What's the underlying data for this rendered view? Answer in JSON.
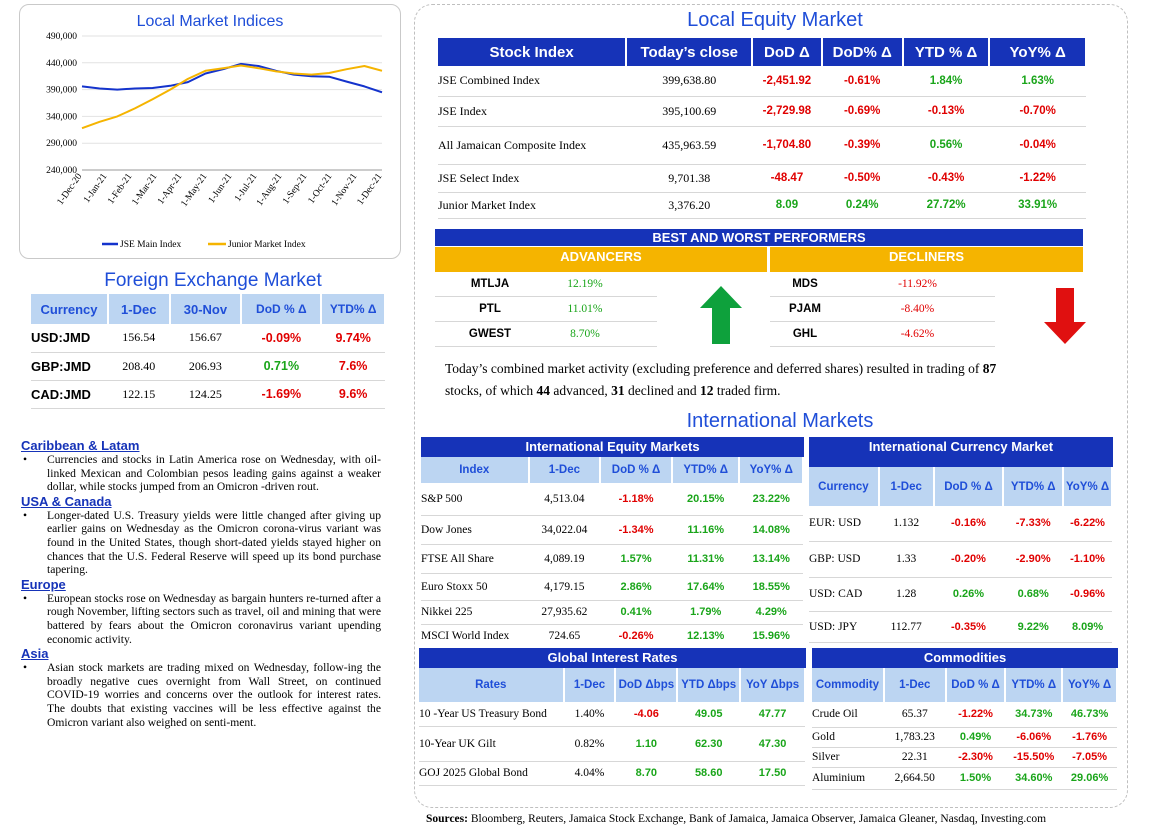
{
  "lmi": {
    "title": "Local Market Indices",
    "chart_data": {
      "type": "line",
      "title": "Local Market Indices",
      "yticks": [
        "490,000",
        "440,000",
        "390,000",
        "340,000",
        "290,000",
        "240,000"
      ],
      "ylim": [
        240000,
        490000
      ],
      "xticks": [
        "1-Dec-20",
        "1-Jan-21",
        "1-Feb-21",
        "1-Mar-21",
        "1-Apr-21",
        "1-May-21",
        "1-Jun-21",
        "1-Jul-21",
        "1-Aug-21",
        "1-Sep-21",
        "1-Oct-21",
        "1-Nov-21",
        "1-Dec-21"
      ],
      "legend_position": "bottom",
      "series": [
        {
          "name": "JSE Main Index",
          "color": "#1433cc",
          "values": [
            396000,
            392000,
            390000,
            392000,
            393000,
            397000,
            404000,
            420000,
            428000,
            438000,
            434000,
            425000,
            418000,
            415000,
            414000,
            405000,
            396000,
            385000
          ]
        },
        {
          "name": "Junior Market Index",
          "color": "#f5b400",
          "values": [
            318000,
            330000,
            340000,
            355000,
            372000,
            390000,
            410000,
            425000,
            430000,
            435000,
            430000,
            424000,
            420000,
            418000,
            421000,
            428000,
            434000,
            425000
          ]
        }
      ]
    }
  },
  "fx": {
    "title": "Foreign Exchange Market",
    "headers": [
      "Currency",
      "1-Dec",
      "30-Nov",
      "DoD % Δ",
      "YTD% Δ"
    ],
    "rows": [
      [
        "USD:JMD",
        "156.54",
        "156.67",
        "-0.09%",
        "9.74%"
      ],
      [
        "GBP:JMD",
        "208.40",
        "206.93",
        "0.71%",
        "7.6%"
      ],
      [
        "CAD:JMD",
        "122.15",
        "124.25",
        "-1.69%",
        "9.6%"
      ]
    ]
  },
  "news": [
    {
      "heading": "Caribbean & Latam",
      "text": "Currencies and stocks in Latin America rose on Wednesday, with oil-linked Mexican and Colombian pesos leading gains against a weaker dollar, while stocks jumped from an Omicron -driven rout."
    },
    {
      "heading": "USA & Canada",
      "text": "Longer-dated U.S. Treasury yields were little changed after giving up earlier gains on Wednesday as the Omicron corona-virus variant was found in the United States, though short-dated yields stayed higher on chances that the U.S. Federal Reserve will speed up its bond purchase tapering."
    },
    {
      "heading": "Europe",
      "text": "European stocks rose on Wednesday as bargain hunters re-turned after a rough November, lifting sectors such as travel, oil and mining that were battered by fears about the Omicron coronavirus variant upending economic activity."
    },
    {
      "heading": "Asia",
      "text": "Asian stock markets are trading mixed on Wednesday, follow-ing the broadly negative cues overnight from Wall Street, on continued COVID-19 worries and concerns over the outlook for interest rates. The doubts that existing vaccines will be less effective against the Omicron variant also weighed on senti-ment."
    }
  ],
  "lem": {
    "title": "Local Equity Market",
    "headers": [
      "Stock Index",
      "Today’s close",
      "DoD  Δ",
      "DoD% Δ",
      "YTD % Δ",
      "YoY% Δ"
    ],
    "rows": [
      [
        "JSE Combined Index",
        "399,638.80",
        "-2,451.92",
        "-0.61%",
        "1.84%",
        "1.63%"
      ],
      [
        "JSE Index",
        "395,100.69",
        "-2,729.98",
        "-0.69%",
        "-0.13%",
        "-0.70%"
      ],
      [
        "All Jamaican Composite Index",
        "435,963.59",
        "-1,704.80",
        "-0.39%",
        "0.56%",
        "-0.04%"
      ],
      [
        "JSE Select Index",
        "9,701.38",
        "-48.47",
        "-0.50%",
        "-0.43%",
        "-1.22%"
      ],
      [
        "Junior Market Index",
        "3,376.20",
        "8.09",
        "0.24%",
        "27.72%",
        "33.91%"
      ]
    ]
  },
  "bw": {
    "title": "BEST AND WORST PERFORMERS",
    "adv_label": "ADVANCERS",
    "dec_label": "DECLINERS",
    "advancers": [
      [
        "MTLJA",
        "12.19%"
      ],
      [
        "PTL",
        "11.01%"
      ],
      [
        "GWEST",
        "8.70%"
      ]
    ],
    "decliners": [
      [
        "MDS",
        "-11.92%"
      ],
      [
        "PJAM",
        "-8.40%"
      ],
      [
        "GHL",
        "-4.62%"
      ]
    ],
    "summary_a": "Today’s combined market activity (excluding preference and deferred shares) resulted in trading of ",
    "summary_n1": "87",
    "summary_b": "stocks, of which ",
    "summary_n2": "44",
    "summary_c": " advanced, ",
    "summary_n3": "31",
    "summary_d": " declined and ",
    "summary_n4": "12",
    "summary_e": " traded firm."
  },
  "intl": {
    "title": "International Markets",
    "equity": {
      "title": "International Equity Markets",
      "headers": [
        "Index",
        "1-Dec",
        "DoD % Δ",
        "YTD% Δ",
        "YoY% Δ"
      ],
      "rows": [
        [
          "S&P 500",
          "4,513.04",
          "-1.18%",
          "20.15%",
          "23.22%"
        ],
        [
          "Dow Jones",
          "34,022.04",
          "-1.34%",
          "11.16%",
          "14.08%"
        ],
        [
          "FTSE All Share",
          "4,089.19",
          "1.57%",
          "11.31%",
          "13.14%"
        ],
        [
          "Euro Stoxx 50",
          "4,179.15",
          "2.86%",
          "17.64%",
          "18.55%"
        ],
        [
          "Nikkei 225",
          "27,935.62",
          "0.41%",
          "1.79%",
          "4.29%"
        ],
        [
          "MSCI World Index",
          "724.65",
          "-0.26%",
          "12.13%",
          "15.96%"
        ]
      ]
    },
    "currency": {
      "title": "International Currency Market",
      "headers": [
        "Currency",
        "1-Dec",
        "DoD % Δ",
        "YTD% Δ",
        "YoY% Δ"
      ],
      "rows": [
        [
          "EUR: USD",
          "1.132",
          "-0.16%",
          "-7.33%",
          "-6.22%"
        ],
        [
          "GBP: USD",
          "1.33",
          "-0.20%",
          "-2.90%",
          "-1.10%"
        ],
        [
          "USD: CAD",
          "1.28",
          "0.26%",
          "0.68%",
          "-0.96%"
        ],
        [
          "USD: JPY",
          "112.77",
          "-0.35%",
          "9.22%",
          "8.09%"
        ]
      ]
    },
    "rates": {
      "title": "Global Interest Rates",
      "headers": [
        "Rates",
        "1-Dec",
        "DoD Δbps",
        "YTD Δbps",
        "YoY Δbps"
      ],
      "rows": [
        [
          "10 -Year US Treasury Bond",
          "1.40%",
          "-4.06",
          "49.05",
          "47.77"
        ],
        [
          "10-Year UK Gilt",
          "0.82%",
          "1.10",
          "62.30",
          "47.30"
        ],
        [
          "GOJ 2025 Global Bond",
          "4.04%",
          "8.70",
          "58.60",
          "17.50"
        ]
      ]
    },
    "commodities": {
      "title": "Commodities",
      "headers": [
        "Commodity",
        "1-Dec",
        "DoD % Δ",
        "YTD% Δ",
        "YoY% Δ"
      ],
      "rows": [
        [
          "Crude Oil",
          "65.37",
          "-1.22%",
          "34.73%",
          "46.73%"
        ],
        [
          "Gold",
          "1,783.23",
          "0.49%",
          "-6.06%",
          "-1.76%"
        ],
        [
          "Silver",
          "22.31",
          "-2.30%",
          "-15.50%",
          "-7.05%"
        ],
        [
          "Aluminium",
          "2,664.50",
          "1.50%",
          "34.60%",
          "29.06%"
        ]
      ]
    }
  },
  "sources_label": "Sources:",
  "sources_text": " Bloomberg, Reuters, Jamaica Stock Exchange, Bank of Jamaica, Jamaica Observer, Jamaica Gleaner, Nasdaq, Investing.com"
}
